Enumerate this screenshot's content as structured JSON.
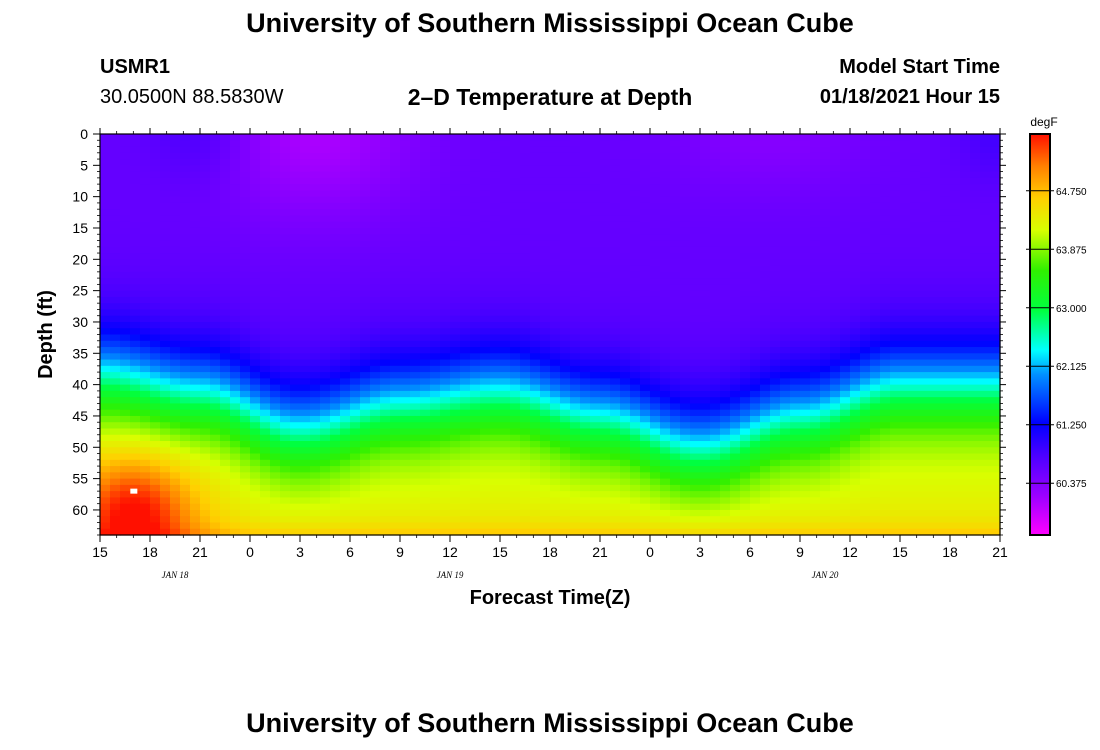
{
  "page": {
    "title_top": "University of Southern Mississippi Ocean Cube",
    "title_bottom": "University of Southern Mississippi Ocean Cube",
    "station_id": "USMR1",
    "coordinates": "30.0500N 88.5830W",
    "plot_title": "2–D Temperature at Depth",
    "model_start_label": "Model Start Time",
    "model_start_value": "01/18/2021 Hour 15"
  },
  "chart_data": {
    "type": "heatmap",
    "title": "2–D Temperature at Depth",
    "xlabel": "Forecast Time(Z)",
    "ylabel": "Depth (ft)",
    "x_range_hours": [
      0,
      54
    ],
    "y_range_ft": [
      0,
      64
    ],
    "x_ticks": [
      "15",
      "18",
      "21",
      "0",
      "3",
      "6",
      "9",
      "12",
      "15",
      "18",
      "21",
      "0",
      "3",
      "6",
      "9",
      "12",
      "15",
      "18",
      "21"
    ],
    "x_tick_hours": [
      0,
      3,
      6,
      9,
      12,
      15,
      18,
      21,
      24,
      27,
      30,
      33,
      36,
      39,
      42,
      45,
      48,
      51,
      54
    ],
    "date_labels": [
      {
        "label": "JAN 18",
        "hour": 4.5
      },
      {
        "label": "JAN 19",
        "hour": 21
      },
      {
        "label": "JAN 20",
        "hour": 43.5
      }
    ],
    "y_ticks": [
      0,
      5,
      10,
      15,
      20,
      25,
      30,
      35,
      40,
      45,
      50,
      55,
      60
    ],
    "colorbar": {
      "unit": "degF",
      "min": 59.6,
      "max": 65.6,
      "tick_values": [
        64.75,
        63.875,
        63.0,
        62.125,
        61.25,
        60.375
      ],
      "tick_labels": [
        "64.750",
        "63.875",
        "63.000",
        "62.125",
        "61.250",
        "60.375"
      ]
    },
    "field_description": {
      "surface_temp_degF": 60.3,
      "mid_layer_temp_degF": 60.6,
      "bottom_temp_degF": 64.3,
      "max_temp_degF": 65.3,
      "thermocline_depth_ft_by_hour": [
        [
          0,
          38
        ],
        [
          6,
          41
        ],
        [
          12,
          47
        ],
        [
          18,
          43
        ],
        [
          24,
          41
        ],
        [
          30,
          45
        ],
        [
          36,
          50
        ],
        [
          42,
          45
        ],
        [
          48,
          40
        ],
        [
          54,
          40
        ]
      ],
      "max_location": {
        "hour": 2,
        "depth_ft": 57
      }
    }
  }
}
